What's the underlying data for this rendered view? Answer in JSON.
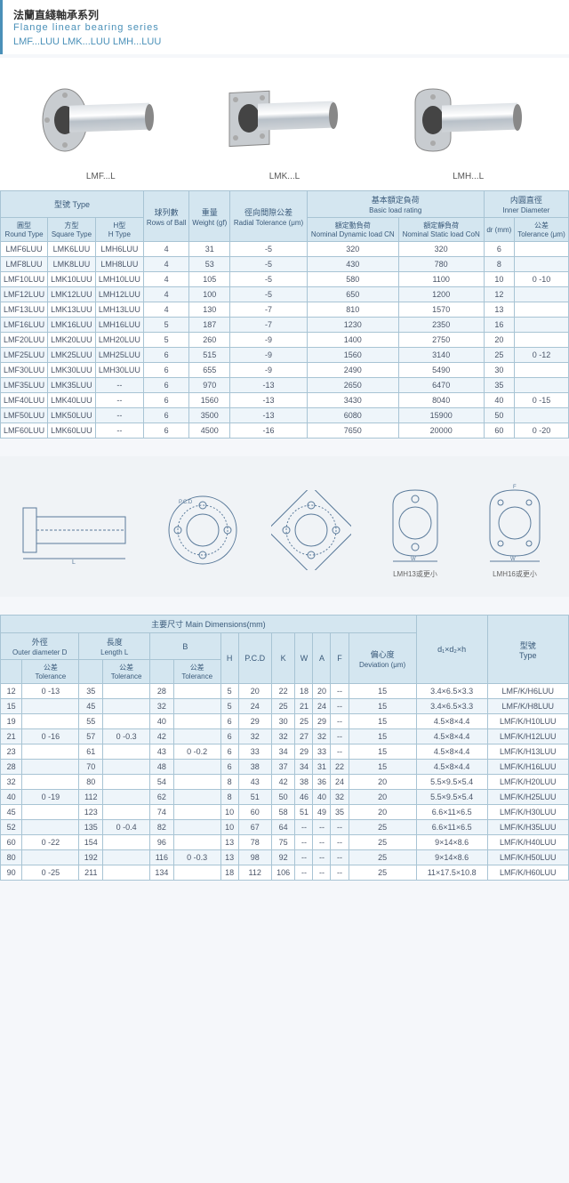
{
  "header": {
    "cn": "法蘭直綫軸承系列",
    "en": "Flange linear bearing series",
    "codes": "LMF...LUU  LMK...LUU  LMH...LUU"
  },
  "products": [
    {
      "label": "LMF...L"
    },
    {
      "label": "LMK...L"
    },
    {
      "label": "LMH...L"
    }
  ],
  "table1": {
    "headers": {
      "type_cn": "型號 Type",
      "round_cn": "圓型",
      "round_en": "Round Type",
      "square_cn": "方型",
      "square_en": "Square Type",
      "h_cn": "H型",
      "h_en": "H Type",
      "rows_cn": "球列數",
      "rows_en": "Rows of Ball",
      "weight_cn": "重量",
      "weight_en": "Weight (gf)",
      "radial_cn": "徑向間隙公差",
      "radial_en": "Radial Tolerance (μm)",
      "load_cn": "基本額定負荷",
      "load_en": "Basic load rating",
      "dyn_cn": "額定動負荷",
      "dyn_en": "Nominal Dynamic load CN",
      "stat_cn": "額定靜負荷",
      "stat_en": "Nominal Static load CoN",
      "inner_cn": "内圓直徑",
      "inner_en": "Inner Diameter",
      "dr": "dr (mm)",
      "tol_cn": "公差",
      "tol_en": "Tolerance (μm)"
    },
    "rows": [
      {
        "rt": "LMF6LUU",
        "st": "LMK6LUU",
        "ht": "LMH6LUU",
        "rb": "4",
        "w": "31",
        "rad": "-5",
        "dyn": "320",
        "stat": "320",
        "dr": "6",
        "tol": ""
      },
      {
        "rt": "LMF8LUU",
        "st": "LMK8LUU",
        "ht": "LMH8LUU",
        "rb": "4",
        "w": "53",
        "rad": "-5",
        "dyn": "430",
        "stat": "780",
        "dr": "8",
        "tol": ""
      },
      {
        "rt": "LMF10LUU",
        "st": "LMK10LUU",
        "ht": "LMH10LUU",
        "rb": "4",
        "w": "105",
        "rad": "-5",
        "dyn": "580",
        "stat": "1100",
        "dr": "10",
        "tol": "0 -10"
      },
      {
        "rt": "LMF12LUU",
        "st": "LMK12LUU",
        "ht": "LMH12LUU",
        "rb": "4",
        "w": "100",
        "rad": "-5",
        "dyn": "650",
        "stat": "1200",
        "dr": "12",
        "tol": ""
      },
      {
        "rt": "LMF13LUU",
        "st": "LMK13LUU",
        "ht": "LMH13LUU",
        "rb": "4",
        "w": "130",
        "rad": "-7",
        "dyn": "810",
        "stat": "1570",
        "dr": "13",
        "tol": ""
      },
      {
        "rt": "LMF16LUU",
        "st": "LMK16LUU",
        "ht": "LMH16LUU",
        "rb": "5",
        "w": "187",
        "rad": "-7",
        "dyn": "1230",
        "stat": "2350",
        "dr": "16",
        "tol": ""
      },
      {
        "rt": "LMF20LUU",
        "st": "LMK20LUU",
        "ht": "LMH20LUU",
        "rb": "5",
        "w": "260",
        "rad": "-9",
        "dyn": "1400",
        "stat": "2750",
        "dr": "20",
        "tol": ""
      },
      {
        "rt": "LMF25LUU",
        "st": "LMK25LUU",
        "ht": "LMH25LUU",
        "rb": "6",
        "w": "515",
        "rad": "-9",
        "dyn": "1560",
        "stat": "3140",
        "dr": "25",
        "tol": "0 -12"
      },
      {
        "rt": "LMF30LUU",
        "st": "LMK30LUU",
        "ht": "LMH30LUU",
        "rb": "6",
        "w": "655",
        "rad": "-9",
        "dyn": "2490",
        "stat": "5490",
        "dr": "30",
        "tol": ""
      },
      {
        "rt": "LMF35LUU",
        "st": "LMK35LUU",
        "ht": "--",
        "rb": "6",
        "w": "970",
        "rad": "-13",
        "dyn": "2650",
        "stat": "6470",
        "dr": "35",
        "tol": ""
      },
      {
        "rt": "LMF40LUU",
        "st": "LMK40LUU",
        "ht": "--",
        "rb": "6",
        "w": "1560",
        "rad": "-13",
        "dyn": "3430",
        "stat": "8040",
        "dr": "40",
        "tol": "0 -15"
      },
      {
        "rt": "LMF50LUU",
        "st": "LMK50LUU",
        "ht": "--",
        "rb": "6",
        "w": "3500",
        "rad": "-13",
        "dyn": "6080",
        "stat": "15900",
        "dr": "50",
        "tol": ""
      },
      {
        "rt": "LMF60LUU",
        "st": "LMK60LUU",
        "ht": "--",
        "rb": "6",
        "w": "4500",
        "rad": "-16",
        "dyn": "7650",
        "stat": "20000",
        "dr": "60",
        "tol": "0 -20"
      }
    ]
  },
  "diagrams": {
    "lmh13": "LMH13或更小",
    "lmh16": "LMH16或更小"
  },
  "table2": {
    "headers": {
      "main_cn": "主要尺寸",
      "main_en": "Main Dimensions(mm)",
      "od_cn": "外徑",
      "od_en": "Outer diameter D",
      "tol_cn": "公差",
      "tol_en": "Tolerance",
      "len_cn": "長度",
      "len_en": "Length L",
      "b": "B",
      "h": "H",
      "pcd": "P.C.D",
      "k": "K",
      "w": "W",
      "a": "A",
      "f": "F",
      "dev_cn": "偏心度",
      "dev_en": "Deviation (μm)",
      "d1d2h": "d₁×d₂×h",
      "type_cn": "型號",
      "type_en": "Type"
    },
    "rows": [
      {
        "d": "12",
        "dtol": "0 -13",
        "l": "35",
        "ltol": "",
        "b": "28",
        "btol": "",
        "h": "5",
        "pcd": "20",
        "k": "22",
        "w": "18",
        "a": "20",
        "f": "--",
        "dev": "15",
        "dh": "3.4×6.5×3.3",
        "type": "LMF/K/H6LUU"
      },
      {
        "d": "15",
        "dtol": "",
        "l": "45",
        "ltol": "",
        "b": "32",
        "btol": "",
        "h": "5",
        "pcd": "24",
        "k": "25",
        "w": "21",
        "a": "24",
        "f": "--",
        "dev": "15",
        "dh": "3.4×6.5×3.3",
        "type": "LMF/K/H8LUU"
      },
      {
        "d": "19",
        "dtol": "",
        "l": "55",
        "ltol": "",
        "b": "40",
        "btol": "",
        "h": "6",
        "pcd": "29",
        "k": "30",
        "w": "25",
        "a": "29",
        "f": "--",
        "dev": "15",
        "dh": "4.5×8×4.4",
        "type": "LMF/K/H10LUU"
      },
      {
        "d": "21",
        "dtol": "0 -16",
        "l": "57",
        "ltol": "0 -0.3",
        "b": "42",
        "btol": "",
        "h": "6",
        "pcd": "32",
        "k": "32",
        "w": "27",
        "a": "32",
        "f": "--",
        "dev": "15",
        "dh": "4.5×8×4.4",
        "type": "LMF/K/H12LUU"
      },
      {
        "d": "23",
        "dtol": "",
        "l": "61",
        "ltol": "",
        "b": "43",
        "btol": "0 -0.2",
        "h": "6",
        "pcd": "33",
        "k": "34",
        "w": "29",
        "a": "33",
        "f": "--",
        "dev": "15",
        "dh": "4.5×8×4.4",
        "type": "LMF/K/H13LUU"
      },
      {
        "d": "28",
        "dtol": "",
        "l": "70",
        "ltol": "",
        "b": "48",
        "btol": "",
        "h": "6",
        "pcd": "38",
        "k": "37",
        "w": "34",
        "a": "31",
        "f": "22",
        "dev": "15",
        "dh": "4.5×8×4.4",
        "type": "LMF/K/H16LUU"
      },
      {
        "d": "32",
        "dtol": "",
        "l": "80",
        "ltol": "",
        "b": "54",
        "btol": "",
        "h": "8",
        "pcd": "43",
        "k": "42",
        "w": "38",
        "a": "36",
        "f": "24",
        "dev": "20",
        "dh": "5.5×9.5×5.4",
        "type": "LMF/K/H20LUU"
      },
      {
        "d": "40",
        "dtol": "0 -19",
        "l": "112",
        "ltol": "",
        "b": "62",
        "btol": "",
        "h": "8",
        "pcd": "51",
        "k": "50",
        "w": "46",
        "a": "40",
        "f": "32",
        "dev": "20",
        "dh": "5.5×9.5×5.4",
        "type": "LMF/K/H25LUU"
      },
      {
        "d": "45",
        "dtol": "",
        "l": "123",
        "ltol": "",
        "b": "74",
        "btol": "",
        "h": "10",
        "pcd": "60",
        "k": "58",
        "w": "51",
        "a": "49",
        "f": "35",
        "dev": "20",
        "dh": "6.6×11×6.5",
        "type": "LMF/K/H30LUU"
      },
      {
        "d": "52",
        "dtol": "",
        "l": "135",
        "ltol": "0 -0.4",
        "b": "82",
        "btol": "",
        "h": "10",
        "pcd": "67",
        "k": "64",
        "w": "--",
        "a": "--",
        "f": "--",
        "dev": "25",
        "dh": "6.6×11×6.5",
        "type": "LMF/K/H35LUU"
      },
      {
        "d": "60",
        "dtol": "0 -22",
        "l": "154",
        "ltol": "",
        "b": "96",
        "btol": "",
        "h": "13",
        "pcd": "78",
        "k": "75",
        "w": "--",
        "a": "--",
        "f": "--",
        "dev": "25",
        "dh": "9×14×8.6",
        "type": "LMF/K/H40LUU"
      },
      {
        "d": "80",
        "dtol": "",
        "l": "192",
        "ltol": "",
        "b": "116",
        "btol": "0 -0.3",
        "h": "13",
        "pcd": "98",
        "k": "92",
        "w": "--",
        "a": "--",
        "f": "--",
        "dev": "25",
        "dh": "9×14×8.6",
        "type": "LMF/K/H50LUU"
      },
      {
        "d": "90",
        "dtol": "0 -25",
        "l": "211",
        "ltol": "",
        "b": "134",
        "btol": "",
        "h": "18",
        "pcd": "112",
        "k": "106",
        "w": "--",
        "a": "--",
        "f": "--",
        "dev": "25",
        "dh": "11×17.5×10.8",
        "type": "LMF/K/H60LUU"
      }
    ]
  }
}
